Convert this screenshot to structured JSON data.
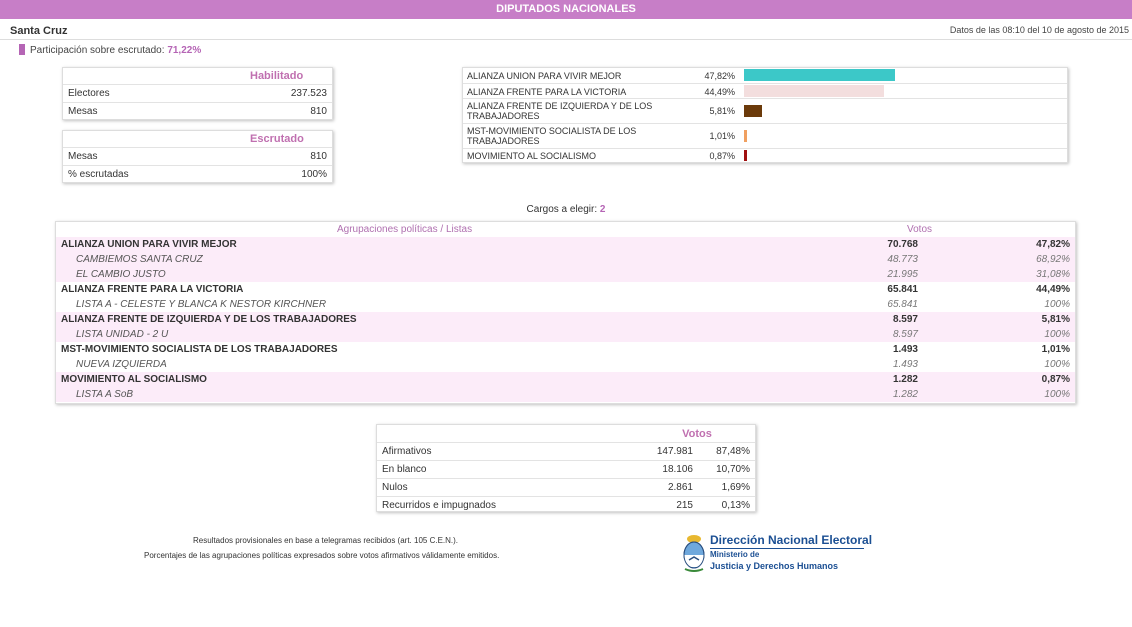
{
  "header": {
    "title": "DIPUTADOS NACIONALES"
  },
  "region": "Santa Cruz",
  "timestamp": "Datos de las 08:10 del 10 de agosto de 2015",
  "participation": {
    "label": "Participación sobre escrutado:",
    "value": "71,22%"
  },
  "habilitado": {
    "title": "Habilitado",
    "rows": [
      {
        "label": "Electores",
        "value": "237.523"
      },
      {
        "label": "Mesas",
        "value": "810"
      }
    ]
  },
  "escrutado": {
    "title": "Escrutado",
    "rows": [
      {
        "label": "Mesas",
        "value": "810"
      },
      {
        "label": "% escrutadas",
        "value": "100%"
      }
    ]
  },
  "bar_chart": {
    "items": [
      {
        "name": "ALIANZA UNION PARA VIVIR MEJOR",
        "pct": "47,82%",
        "value": 47.82,
        "color": "#3cc8c8"
      },
      {
        "name": "ALIANZA FRENTE PARA LA VICTORIA",
        "pct": "44,49%",
        "value": 44.49,
        "color": "#f3dede"
      },
      {
        "name": "ALIANZA FRENTE DE IZQUIERDA Y DE LOS TRABAJADORES",
        "pct": "5,81%",
        "value": 5.81,
        "color": "#6b3a0a"
      },
      {
        "name": "MST-MOVIMIENTO SOCIALISTA DE LOS TRABAJADORES",
        "pct": "1,01%",
        "value": 1.01,
        "color": "#f0a060"
      },
      {
        "name": "MOVIMIENTO AL SOCIALISMO",
        "pct": "0,87%",
        "value": 0.87,
        "color": "#a01010"
      }
    ]
  },
  "cargos": {
    "label": "Cargos a elegir:",
    "value": "2"
  },
  "main_table": {
    "col_groups": "Agrupaciones políticas / Listas",
    "col_votes": "Votos",
    "rows": [
      {
        "type": "party",
        "name": "ALIANZA UNION PARA VIVIR MEJOR",
        "votes": "70.768",
        "pct": "47,82%"
      },
      {
        "type": "list",
        "name": "CAMBIEMOS SANTA CRUZ",
        "votes": "48.773",
        "pct": "68,92%"
      },
      {
        "type": "list",
        "name": "EL CAMBIO JUSTO",
        "votes": "21.995",
        "pct": "31,08%"
      },
      {
        "type": "party",
        "name": "ALIANZA FRENTE PARA LA VICTORIA",
        "votes": "65.841",
        "pct": "44,49%"
      },
      {
        "type": "list",
        "name": "LISTA A - CELESTE Y BLANCA K NESTOR KIRCHNER",
        "votes": "65.841",
        "pct": "100%"
      },
      {
        "type": "party",
        "name": "ALIANZA FRENTE DE IZQUIERDA Y DE LOS TRABAJADORES",
        "votes": "8.597",
        "pct": "5,81%"
      },
      {
        "type": "list",
        "name": "LISTA UNIDAD - 2 U",
        "votes": "8.597",
        "pct": "100%"
      },
      {
        "type": "party",
        "name": "MST-MOVIMIENTO SOCIALISTA DE LOS TRABAJADORES",
        "votes": "1.493",
        "pct": "1,01%"
      },
      {
        "type": "list",
        "name": "NUEVA IZQUIERDA",
        "votes": "1.493",
        "pct": "100%"
      },
      {
        "type": "party",
        "name": "MOVIMIENTO AL SOCIALISMO",
        "votes": "1.282",
        "pct": "0,87%"
      },
      {
        "type": "list",
        "name": "LISTA A SoB",
        "votes": "1.282",
        "pct": "100%"
      }
    ]
  },
  "votos": {
    "title": "Votos",
    "rows": [
      {
        "label": "Afirmativos",
        "votes": "147.981",
        "pct": "87,48%"
      },
      {
        "label": "En blanco",
        "votes": "18.106",
        "pct": "10,70%"
      },
      {
        "label": "Nulos",
        "votes": "2.861",
        "pct": "1,69%"
      },
      {
        "label": "Recurridos e impugnados",
        "votes": "215",
        "pct": "0,13%"
      }
    ]
  },
  "footer": {
    "line1": "Resultados provisionales en base a telegramas recibidos (art. 105 C.E.N.).",
    "line2": "Porcentajes de las agrupaciones políticas expresados sobre votos afirmativos válidamente emitidos."
  },
  "logo": {
    "title": "Dirección Nacional Electoral",
    "subtitle1": "Ministerio de",
    "subtitle2": "Justicia y Derechos Humanos"
  }
}
